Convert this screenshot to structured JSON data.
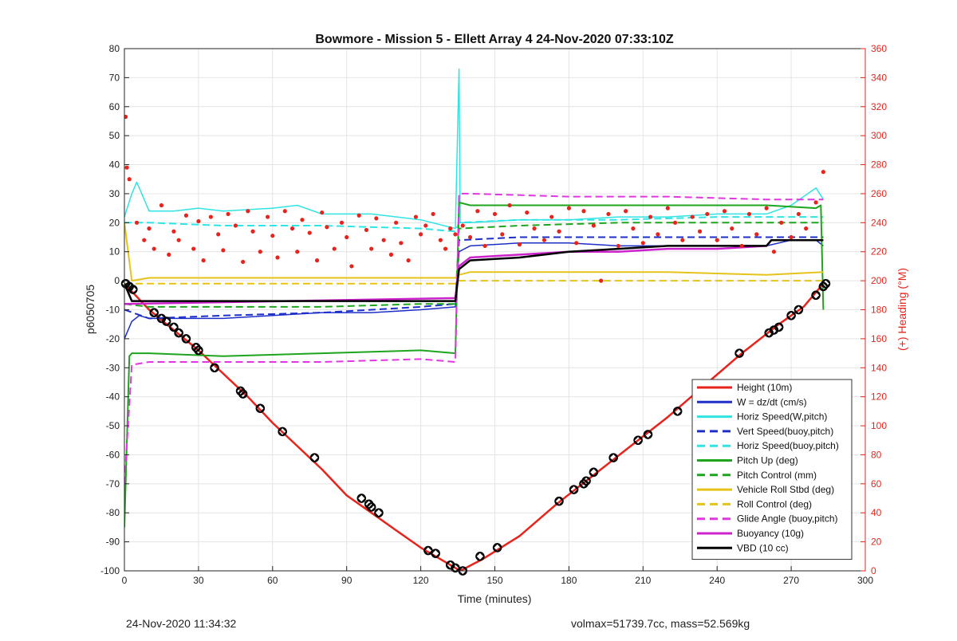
{
  "footer": {
    "timestamp": "24-Nov-2020 11:34:32",
    "info": "volmax=51739.7cc, mass=52.569kg"
  },
  "chart_data": {
    "type": "line",
    "title": "Bowmore - Mission 5 - Ellett Array 4 24-Nov-2020 07:33:10Z",
    "xlabel": "Time (minutes)",
    "ylabel": "p6050705",
    "y2label": "(+) Heading (°M)",
    "xlim": [
      0,
      300
    ],
    "ylim": [
      -100,
      80
    ],
    "y2lim": [
      0,
      360
    ],
    "xticks": [
      0,
      30,
      60,
      90,
      120,
      150,
      180,
      210,
      240,
      270,
      300
    ],
    "yticks": [
      -100,
      -90,
      -80,
      -70,
      -60,
      -50,
      -40,
      -30,
      -20,
      -10,
      0,
      10,
      20,
      30,
      40,
      50,
      60,
      70,
      80
    ],
    "y2ticks": [
      0,
      20,
      40,
      60,
      80,
      100,
      120,
      140,
      160,
      180,
      200,
      220,
      240,
      260,
      280,
      300,
      320,
      340,
      360
    ],
    "grid": true,
    "legend_position": "bottom-right",
    "series": [
      {
        "name": "Height (10m)",
        "color": "#e8231b",
        "style": "solid",
        "width": 2.5,
        "x": [
          0,
          10,
          20,
          30,
          40,
          50,
          60,
          70,
          80,
          90,
          100,
          110,
          120,
          130,
          136,
          145,
          160,
          175,
          190,
          205,
          220,
          235,
          250,
          265,
          275,
          283
        ],
        "y": [
          -1,
          -10,
          -17,
          -24,
          -32,
          -40,
          -49,
          -57,
          -65,
          -74,
          -80,
          -86,
          -92,
          -97,
          -100,
          -96,
          -88,
          -77,
          -67,
          -57,
          -47,
          -36,
          -25,
          -15,
          -9,
          -1
        ]
      },
      {
        "name": "W = dz/dt (cm/s)",
        "color": "#1e2fc8",
        "style": "solid",
        "width": 1.5,
        "x": [
          0,
          3,
          6,
          10,
          20,
          40,
          60,
          80,
          100,
          120,
          134,
          135.5,
          140,
          160,
          180,
          200,
          220,
          240,
          260,
          270,
          280,
          283
        ],
        "y": [
          -20,
          -14,
          -12,
          -13,
          -13,
          -13,
          -12,
          -11,
          -11,
          -10,
          -9,
          10,
          12,
          13,
          13,
          12,
          12,
          12,
          12,
          14,
          14,
          12
        ]
      },
      {
        "name": "Horiz Speed(W,pitch)",
        "color": "#31e3e3",
        "style": "solid",
        "width": 1.5,
        "x": [
          0,
          3,
          5,
          10,
          20,
          30,
          40,
          60,
          70,
          80,
          100,
          120,
          134,
          135.5,
          136,
          137,
          140,
          160,
          180,
          200,
          220,
          240,
          260,
          270,
          280,
          283
        ],
        "y": [
          22,
          30,
          34,
          24,
          24,
          25,
          24,
          25,
          26,
          23,
          23,
          21,
          18,
          73,
          20,
          20,
          20,
          21,
          21,
          22,
          22,
          23,
          23,
          26,
          32,
          28
        ]
      },
      {
        "name": "Vert Speed(buoy,pitch)",
        "color": "#1e2fc8",
        "style": "dashed",
        "width": 2,
        "x": [
          0,
          10,
          40,
          80,
          120,
          134,
          135.5,
          160,
          200,
          240,
          283
        ],
        "y": [
          -10,
          -13,
          -12,
          -11,
          -9,
          -8,
          14,
          15,
          15,
          15,
          15
        ]
      },
      {
        "name": "Horiz Speed(buoy,pitch)",
        "color": "#31e3e3",
        "style": "dashed",
        "width": 2,
        "x": [
          0,
          10,
          40,
          80,
          120,
          134,
          135.5,
          160,
          200,
          240,
          283
        ],
        "y": [
          20,
          20,
          19,
          19,
          18,
          17,
          20,
          21,
          21,
          22,
          22
        ]
      },
      {
        "name": "Pitch Up (deg)",
        "color": "#1ea51e",
        "style": "solid",
        "width": 2,
        "x": [
          0,
          2,
          3,
          10,
          40,
          80,
          120,
          134,
          135.5,
          140,
          180,
          220,
          260,
          280,
          282,
          283
        ],
        "y": [
          -85,
          -26,
          -25,
          -25,
          -26,
          -25,
          -24,
          -25,
          27,
          26,
          26,
          26,
          26,
          25,
          26,
          -10
        ]
      },
      {
        "name": "Pitch Control (mm)",
        "color": "#1ea51e",
        "style": "dashed",
        "width": 2,
        "x": [
          0,
          10,
          40,
          80,
          120,
          134,
          135.5,
          160,
          200,
          240,
          283
        ],
        "y": [
          -8,
          -9,
          -9,
          -9,
          -8,
          -8,
          18,
          19,
          20,
          20,
          20
        ]
      },
      {
        "name": "Vehicle Roll Stbd (deg)",
        "color": "#e6c318",
        "style": "solid",
        "width": 2,
        "x": [
          0,
          3,
          10,
          40,
          80,
          120,
          134,
          135.5,
          140,
          180,
          220,
          260,
          283
        ],
        "y": [
          20,
          0,
          1,
          1,
          1,
          1,
          1,
          2,
          3,
          3,
          3,
          2,
          3
        ]
      },
      {
        "name": "Roll Control (deg)",
        "color": "#e6c318",
        "style": "dashed",
        "width": 2,
        "x": [
          0,
          10,
          40,
          80,
          120,
          134,
          135.5,
          160,
          200,
          240,
          283
        ],
        "y": [
          -1,
          -1,
          -1,
          -1,
          -1,
          -1,
          0,
          0,
          0,
          0,
          0
        ]
      },
      {
        "name": "Glide Angle (buoy,pitch)",
        "color": "#e236e2",
        "style": "dashed",
        "width": 2,
        "x": [
          0,
          3,
          10,
          40,
          80,
          120,
          134,
          135.5,
          140,
          180,
          220,
          260,
          283
        ],
        "y": [
          -70,
          -29,
          -28,
          -28,
          -28,
          -27,
          -28,
          30,
          30,
          29,
          29,
          28,
          28
        ]
      },
      {
        "name": "Buoyancy (10g)",
        "color": "#cc22cc",
        "style": "solid",
        "width": 2.5,
        "x": [
          0,
          134,
          135.5,
          140,
          160,
          180,
          200,
          220,
          240,
          260,
          262,
          283
        ],
        "y": [
          -8,
          -6,
          5,
          8,
          9,
          10,
          10,
          11,
          11,
          12,
          14,
          14
        ]
      },
      {
        "name": "VBD (10 cc)",
        "color": "#000000",
        "style": "solid",
        "width": 2.5,
        "x": [
          0,
          1,
          3,
          134,
          135.5,
          140,
          160,
          180,
          200,
          220,
          240,
          260,
          262,
          283
        ],
        "y": [
          -1,
          -3,
          -7,
          -7,
          4,
          7,
          8,
          10,
          11,
          12,
          12,
          12,
          14,
          14
        ]
      }
    ],
    "heading_series": {
      "color": "#e8231b",
      "style": "dots",
      "axis": "right",
      "x": [
        0.5,
        1,
        2,
        5,
        8,
        10,
        12,
        15,
        18,
        20,
        22,
        25,
        28,
        30,
        32,
        35,
        38,
        40,
        42,
        45,
        48,
        50,
        52,
        55,
        58,
        60,
        62,
        65,
        68,
        70,
        72,
        75,
        78,
        80,
        82,
        85,
        88,
        90,
        92,
        95,
        98,
        100,
        102,
        105,
        108,
        110,
        112,
        115,
        118,
        120,
        122,
        125,
        128,
        130,
        132,
        134,
        137,
        140,
        143,
        146,
        150,
        153,
        156,
        160,
        163,
        166,
        170,
        173,
        176,
        180,
        183,
        186,
        190,
        193,
        196,
        200,
        203,
        206,
        210,
        213,
        216,
        220,
        223,
        226,
        230,
        233,
        236,
        240,
        243,
        246,
        250,
        253,
        256,
        260,
        263,
        266,
        270,
        273,
        276,
        280,
        283
      ],
      "y": [
        313,
        278,
        270,
        240,
        228,
        236,
        222,
        252,
        218,
        234,
        228,
        245,
        222,
        241,
        214,
        244,
        232,
        221,
        246,
        238,
        213,
        248,
        234,
        220,
        244,
        231,
        216,
        248,
        236,
        220,
        242,
        233,
        214,
        247,
        237,
        222,
        240,
        230,
        210,
        245,
        235,
        222,
        243,
        228,
        218,
        240,
        226,
        214,
        244,
        232,
        238,
        246,
        228,
        222,
        236,
        232,
        238,
        230,
        248,
        224,
        246,
        232,
        252,
        225,
        247,
        236,
        228,
        244,
        234,
        250,
        226,
        248,
        238,
        200,
        246,
        224,
        248,
        236,
        226,
        244,
        232,
        250,
        240,
        228,
        244,
        234,
        246,
        228,
        248,
        236,
        224,
        246,
        232,
        250,
        220,
        240,
        230,
        246,
        236,
        254,
        275
      ]
    },
    "markers": {
      "symbol": "circled-diamond",
      "color": "#000000",
      "x": [
        0.5,
        2,
        3.5,
        12,
        15,
        17,
        20,
        22,
        25,
        29,
        30,
        36.5,
        47,
        48,
        55,
        64,
        77,
        96,
        99,
        100,
        103,
        123,
        126,
        132,
        134,
        137,
        144,
        151,
        176,
        182,
        186,
        187,
        190,
        198,
        208,
        212,
        224,
        249,
        261,
        263,
        265,
        270,
        273,
        280,
        283,
        284
      ],
      "y": [
        -1,
        -2,
        -3,
        -11,
        -13,
        -14,
        -16,
        -18,
        -20,
        -23,
        -24,
        -30,
        -38,
        -39,
        -44,
        -52,
        -61,
        -75,
        -77,
        -78,
        -80,
        -93,
        -94,
        -98,
        -99,
        -100,
        -95,
        -92,
        -76,
        -72,
        -70,
        -69,
        -66,
        -61,
        -55,
        -53,
        -45,
        -25,
        -18,
        -17,
        -16,
        -12,
        -10,
        -5,
        -2,
        -1
      ]
    }
  }
}
